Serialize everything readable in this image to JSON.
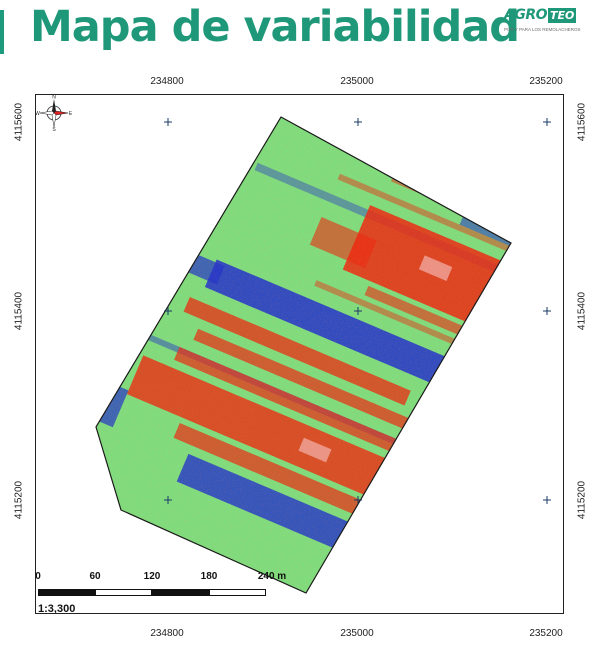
{
  "header": {
    "title": "Mapa de variabilidad",
    "logo_agro": "AGRO",
    "logo_teo": "TEO",
    "logo_tagline": "POR Y PARA LOS REMOLACHEROS"
  },
  "axes": {
    "x_ticks_top": [
      "234800",
      "235000",
      "235200"
    ],
    "x_ticks_bottom": [
      "234800",
      "235000",
      "235200"
    ],
    "y_ticks_left": [
      "4115600",
      "4115400",
      "4115200"
    ],
    "y_ticks_right": [
      "4115600",
      "4115400",
      "4115200"
    ]
  },
  "scale_bar": {
    "labels": [
      "0",
      "60",
      "120",
      "180",
      "240 m"
    ],
    "ratio": "1:3,300"
  },
  "compass": {
    "n": "N",
    "s": "S",
    "e": "E",
    "w": "W"
  },
  "legend_colors": {
    "low": "#2233cc",
    "mid": "#7ede7e",
    "high": "#ec2a12",
    "brand": "#1f9879"
  }
}
